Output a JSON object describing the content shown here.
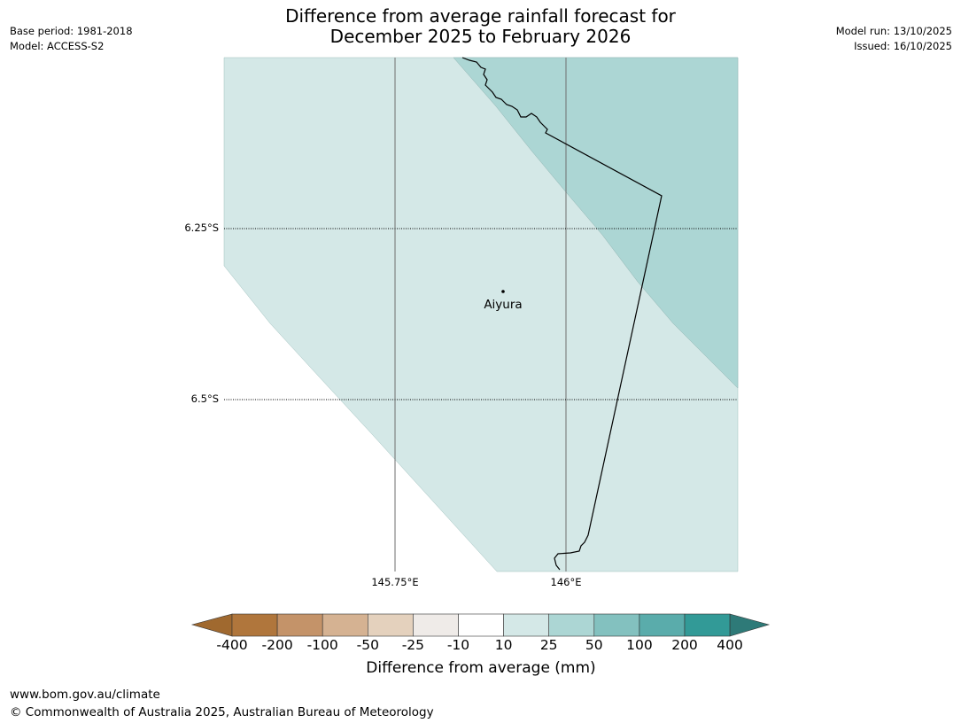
{
  "title_line1": "Difference from average rainfall forecast for",
  "title_line2": "December 2025 to February 2026",
  "meta_left": {
    "base_period": "Base period: 1981-2018",
    "model": "Model: ACCESS-S2"
  },
  "meta_right": {
    "model_run": "Model run: 13/10/2025",
    "issued": "Issued: 16/10/2025"
  },
  "map": {
    "lat_labels": [
      "6.25°S",
      "6.5°S"
    ],
    "lon_labels": [
      "145.75°E",
      "146°E"
    ],
    "city": "Aiyura",
    "colors": {
      "band_10_25": "#d4e8e7",
      "band_25_50": "#acd6d4",
      "grid_line": "#6e6e6e",
      "coast": "#000000"
    }
  },
  "colorbar": {
    "labels": [
      "-400",
      "-200",
      "-100",
      "-50",
      "-25",
      "-10",
      "10",
      "25",
      "50",
      "100",
      "200",
      "400"
    ],
    "colors": [
      "#a0692f",
      "#b0763c",
      "#c49369",
      "#d5b292",
      "#e4d1bd",
      "#efebe8",
      "#ffffff",
      "#d4e8e7",
      "#acd6d4",
      "#83c1bf",
      "#5aacab",
      "#329a97",
      "#2e7a78"
    ],
    "title": "Difference from average (mm)"
  },
  "footer": {
    "url": "www.bom.gov.au/climate",
    "copyright": "© Commonwealth of Australia 2025, Australian Bureau of Meteorology"
  }
}
